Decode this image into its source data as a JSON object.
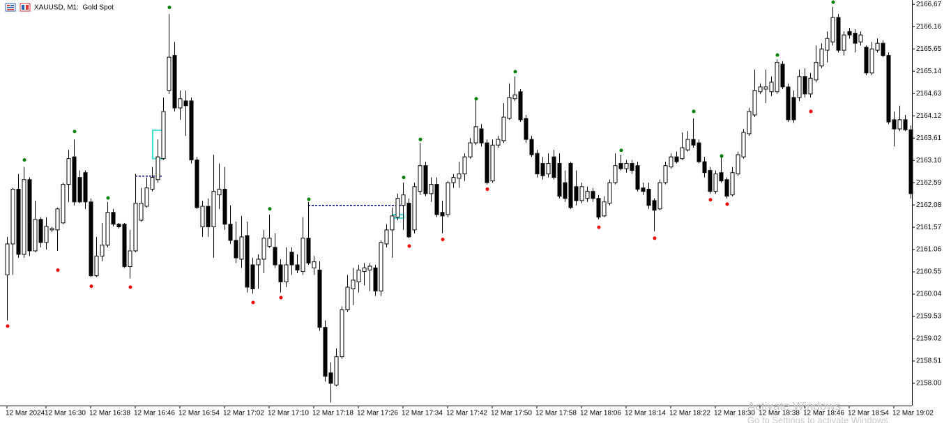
{
  "chart_data": {
    "type": "candlestick",
    "title": "XAUUSD, M1:  Gold Spot",
    "categories": [
      "12 Mar 2024",
      null,
      null,
      null,
      null,
      null,
      null,
      "12 Mar 16:30",
      null,
      null,
      null,
      null,
      null,
      null,
      null,
      "12 Mar 16:38",
      null,
      null,
      null,
      null,
      null,
      null,
      null,
      "12 Mar 16:46",
      null,
      null,
      null,
      null,
      null,
      null,
      null,
      "12 Mar 16:54",
      null,
      null,
      null,
      null,
      null,
      null,
      null,
      "12 Mar 17:02",
      null,
      null,
      null,
      null,
      null,
      null,
      null,
      "12 Mar 17:10",
      null,
      null,
      null,
      null,
      null,
      null,
      null,
      "12 Mar 17:18",
      null,
      null,
      null,
      null,
      null,
      null,
      null,
      "12 Mar 17:26",
      null,
      null,
      null,
      null,
      null,
      null,
      null,
      "12 Mar 17:34",
      null,
      null,
      null,
      null,
      null,
      null,
      null,
      "12 Mar 17:42",
      null,
      null,
      null,
      null,
      null,
      null,
      null,
      "12 Mar 17:50",
      null,
      null,
      null,
      null,
      null,
      null,
      null,
      "12 Mar 17:58",
      null,
      null,
      null,
      null,
      null,
      null,
      null,
      "12 Mar 18:06",
      null,
      null,
      null,
      null,
      null,
      null,
      null,
      "12 Mar 18:14",
      null,
      null,
      null,
      null,
      null,
      null,
      null,
      "12 Mar 18:22",
      null,
      null,
      null,
      null,
      null,
      null,
      null,
      "12 Mar 18:30",
      null,
      null,
      null,
      null,
      null,
      null,
      null,
      "12 Mar 18:38",
      null,
      null,
      null,
      null,
      null,
      null,
      null,
      "12 Mar 18:46",
      null,
      null,
      null,
      null,
      null,
      null,
      null,
      "12 Mar 18:54",
      null,
      null,
      null,
      null,
      null,
      null,
      null,
      "12 Mar 19:02",
      null,
      null,
      null
    ],
    "open": [
      2160.48,
      2161.19,
      2162.44,
      2160.95,
      2162.66,
      2161.03,
      2161.75,
      2161.22,
      2161.51,
      2161.51,
      2161.67,
      2162.55,
      2163.18,
      2162.71,
      2162.82,
      2162.15,
      2160.46,
      2160.91,
      2161.16,
      2161.91,
      2161.64,
      2161.64,
      2160.67,
      2161.03,
      2161.73,
      2162.05,
      2162.44,
      2162.66,
      2163.14,
      2164.7,
      2165.5,
      2164.3,
      2164.46,
      2164.46,
      2163.11,
      2161.58,
      2162.05,
      2161.58,
      2162.31,
      2162.44,
      2161.64,
      2161.27,
      2160.84,
      2161.38,
      2160.71,
      2160.71,
      2160.84,
      2161.13,
      2161.11,
      2160.71,
      2160.32,
      2161.0,
      2160.71,
      2160.56,
      2161.32,
      2160.64,
      2160.59,
      2159.28,
      2158.24,
      2157.96,
      2158.61,
      2159.68,
      2160.16,
      2160.32,
      2160.56,
      2160.59,
      2160.64,
      2160.11,
      2161.19,
      2161.51,
      2161.8,
      2162.07,
      2162.12,
      2161.51,
      2162.39,
      2162.98,
      2162.34,
      2162.55,
      2161.91,
      2161.86,
      2162.59,
      2162.69,
      2162.79,
      2163.18,
      2163.5,
      2163.82,
      2163.5,
      2162.63,
      2163.45,
      2163.55,
      2164.06,
      2164.51,
      2164.67,
      2164.06,
      2163.58,
      2163.26,
      2163.03,
      2162.79,
      2163.18,
      2163.03,
      2162.59,
      2163.03,
      2162.5,
      2162.18,
      2162.23,
      2162.39,
      2162.23,
      2161.83,
      2162.12,
      2162.59,
      2163.03,
      2162.91,
      2163.03,
      2162.98,
      2162.47,
      2162.44,
      2162.18,
      2161.99,
      2162.59,
      2162.95,
      2163.18,
      2163.14,
      2163.34,
      2163.58,
      2163.5,
      2163.07,
      2162.87,
      2162.39,
      2162.82,
      2162.66,
      2162.31,
      2162.79,
      2163.18,
      2163.71,
      2164.14,
      2164.67,
      2164.73,
      2164.67,
      2164.67,
      2165.3,
      2164.78,
      2164.54,
      2164.54,
      2165.02,
      2164.62,
      2164.94,
      2165.26,
      2165.62,
      2165.81,
      2166.37,
      2165.62,
      2166.05,
      2166.01,
      2165.81,
      2165.69,
      2165.1,
      2165.62,
      2165.78,
      2165.5,
      2164.03,
      2163.82,
      2164.03,
      2163.8
    ],
    "high": [
      2161.35,
      2162.47,
      2162.79,
      2162.95,
      2162.71,
      2162.18,
      2161.8,
      2161.8,
      2161.58,
      2162.02,
      2162.59,
      2163.34,
      2163.58,
      2162.87,
      2162.87,
      2162.23,
      2161.35,
      2161.67,
      2162.15,
      2161.99,
      2161.67,
      2161.67,
      2161.51,
      2162.79,
      2162.47,
      2162.71,
      2162.95,
      2163.58,
      2164.54,
      2166.45,
      2165.81,
      2164.7,
      2164.7,
      2164.54,
      2163.18,
      2162.18,
      2162.23,
      2163.23,
      2163.03,
      2162.95,
      2162.07,
      2161.7,
      2161.83,
      2161.7,
      2160.87,
      2160.95,
      2161.51,
      2161.86,
      2161.43,
      2160.84,
      2161.11,
      2161.11,
      2160.95,
      2161.8,
      2162.15,
      2160.91,
      2160.79,
      2159.44,
      2158.48,
      2158.8,
      2159.76,
      2160.48,
      2160.64,
      2160.71,
      2160.75,
      2160.75,
      2160.71,
      2161.27,
      2161.64,
      2162.02,
      2162.34,
      2162.59,
      2162.23,
      2162.59,
      2163.5,
      2163.07,
      2162.71,
      2162.71,
      2162.18,
      2162.63,
      2162.79,
      2163.07,
      2163.26,
      2163.61,
      2164.51,
      2163.93,
      2163.58,
      2163.58,
      2163.66,
      2164.41,
      2164.86,
      2165.02,
      2164.73,
      2164.14,
      2163.66,
      2163.34,
      2163.18,
      2163.26,
      2163.34,
      2163.26,
      2162.87,
      2163.07,
      2162.87,
      2162.59,
      2162.5,
      2162.47,
      2162.31,
      2162.28,
      2162.66,
      2163.26,
      2163.23,
      2163.11,
      2163.11,
      2163.07,
      2162.59,
      2162.59,
      2162.23,
      2162.66,
      2163.07,
      2163.26,
      2163.3,
      2163.74,
      2163.77,
      2164.06,
      2163.58,
      2163.18,
      2162.95,
      2162.87,
      2163.18,
      2162.71,
      2162.95,
      2163.3,
      2163.82,
      2164.3,
      2165.18,
      2164.86,
      2165.18,
      2165.02,
      2165.41,
      2165.37,
      2164.86,
      2164.7,
      2165.18,
      2165.21,
      2165.1,
      2165.73,
      2165.78,
      2166.05,
      2166.61,
      2166.45,
      2166.05,
      2166.13,
      2166.1,
      2166.05,
      2165.73,
      2165.81,
      2165.89,
      2165.85,
      2165.57,
      2164.22,
      2164.35,
      2164.14,
      2163.9
    ],
    "low": [
      2159.44,
      2160.48,
      2160.87,
      2160.87,
      2160.91,
      2161.0,
      2161.11,
      2161.06,
      2161.46,
      2161.03,
      2161.64,
      2162.15,
      2162.07,
      2162.12,
      2161.99,
      2160.43,
      2160.43,
      2160.79,
      2161.11,
      2161.59,
      2161.54,
      2160.64,
      2160.4,
      2161.0,
      2161.7,
      2162.02,
      2162.39,
      2162.59,
      2163.11,
      2164.62,
      2164.22,
      2164.03,
      2163.66,
      2163.03,
      2161.99,
      2161.35,
      2161.35,
      2160.87,
      2161.99,
      2161.51,
      2161.19,
      2160.75,
      2160.64,
      2160.08,
      2160.05,
      2160.16,
      2160.52,
      2161.1,
      2160.64,
      2160.08,
      2160.2,
      2160.48,
      2160.52,
      2160.48,
      2160.71,
      2160.48,
      2159.2,
      2158.04,
      2157.56,
      2157.93,
      2158.56,
      2159.63,
      2159.79,
      2160.08,
      2160.24,
      2160.11,
      2160.0,
      2160.0,
      2161.11,
      2160.87,
      2161.73,
      2161.51,
      2161.32,
      2161.43,
      2162.31,
      2162.28,
      2162.15,
      2161.8,
      2161.43,
      2161.8,
      2162.47,
      2162.47,
      2162.63,
      2163.14,
      2163.45,
      2163.42,
      2162.55,
      2162.59,
      2163.39,
      2163.5,
      2164.03,
      2164.46,
      2163.98,
      2163.5,
      2163.18,
      2162.71,
      2162.66,
      2162.71,
      2162.66,
      2162.23,
      2162.15,
      2161.99,
      2162.07,
      2162.12,
      2162.15,
      2162.15,
      2161.75,
      2161.8,
      2162.07,
      2162.55,
      2162.87,
      2162.82,
      2162.79,
      2162.39,
      2162.31,
      2161.99,
      2161.48,
      2161.96,
      2162.55,
      2162.91,
      2163.03,
      2163.11,
      2163.3,
      2163.39,
      2163.03,
      2162.71,
      2162.34,
      2162.34,
      2162.59,
      2162.23,
      2162.28,
      2162.75,
      2163.14,
      2163.66,
      2164.09,
      2164.62,
      2164.41,
      2164.57,
      2164.62,
      2164.73,
      2163.98,
      2163.96,
      2164.46,
      2164.54,
      2164.54,
      2164.89,
      2165.21,
      2165.34,
      2165.73,
      2165.57,
      2165.5,
      2165.89,
      2165.57,
      2165.73,
      2165.05,
      2165.05,
      2165.57,
      2165.46,
      2163.93,
      2163.42,
      2163.77,
      2163.77,
      2162.23
    ],
    "close": [
      2161.19,
      2162.44,
      2160.95,
      2162.66,
      2161.03,
      2161.75,
      2161.22,
      2161.59,
      2161.54,
      2161.99,
      2162.55,
      2163.14,
      2162.15,
      2162.15,
      2162.15,
      2160.46,
      2160.91,
      2161.16,
      2161.91,
      2161.64,
      2161.58,
      2160.67,
      2161.03,
      2162.12,
      2162.12,
      2162.47,
      2162.71,
      2163.18,
      2164.22,
      2165.46,
      2164.3,
      2164.51,
      2164.35,
      2163.11,
      2162.02,
      2162.05,
      2161.58,
      2162.39,
      2162.44,
      2161.64,
      2161.27,
      2160.87,
      2161.35,
      2160.2,
      2160.16,
      2160.84,
      2161.32,
      2161.32,
      2160.71,
      2160.32,
      2160.71,
      2160.71,
      2160.59,
      2161.32,
      2160.75,
      2160.78,
      2159.28,
      2158.16,
      2158.0,
      2158.61,
      2159.68,
      2160.2,
      2160.36,
      2160.59,
      2160.64,
      2160.68,
      2160.11,
      2161.22,
      2161.51,
      2161.83,
      2162.23,
      2162.31,
      2161.35,
      2162.5,
      2162.98,
      2162.34,
      2162.55,
      2161.86,
      2161.83,
      2162.59,
      2162.71,
      2162.79,
      2163.18,
      2163.5,
      2163.87,
      2163.5,
      2162.59,
      2163.45,
      2163.58,
      2164.09,
      2164.54,
      2164.6,
      2164.03,
      2163.58,
      2163.23,
      2162.79,
      2162.75,
      2163.03,
      2162.71,
      2162.28,
      2162.23,
      2162.02,
      2162.18,
      2162.5,
      2162.39,
      2162.23,
      2161.8,
      2162.15,
      2162.59,
      2162.98,
      2162.91,
      2163.03,
      2162.87,
      2162.44,
      2162.39,
      2162.07,
      2161.96,
      2162.59,
      2162.98,
      2163.18,
      2163.07,
      2163.39,
      2163.58,
      2163.45,
      2163.07,
      2162.82,
      2162.39,
      2162.79,
      2162.63,
      2162.28,
      2162.82,
      2163.23,
      2163.74,
      2164.22,
      2164.7,
      2164.78,
      2164.78,
      2164.89,
      2165.34,
      2164.78,
      2164.03,
      2164.03,
      2165.02,
      2164.62,
      2164.98,
      2165.34,
      2165.65,
      2165.89,
      2166.37,
      2165.62,
      2165.97,
      2165.97,
      2165.78,
      2165.97,
      2165.1,
      2165.65,
      2165.78,
      2165.5,
      2163.98,
      2163.82,
      2164.03,
      2163.8,
      2162.34
    ],
    "up_color": "#ffffff",
    "down_color": "#000000",
    "up_fractals": {
      "color": "#008000",
      "x": [
        3,
        12,
        18,
        29,
        47,
        54,
        71,
        74,
        84,
        91,
        110,
        123,
        128,
        138,
        148
      ],
      "values": [
        2163.11,
        2163.76,
        2162.24,
        2166.6,
        2161.99,
        2162.21,
        2162.71,
        2163.58,
        2164.51,
        2165.13,
        2163.33,
        2164.22,
        2163.2,
        2165.51,
        2166.72
      ]
    },
    "down_fractals": {
      "color": "#ff0000",
      "x": [
        0,
        9,
        15,
        22,
        44,
        49,
        72,
        78,
        86,
        106,
        116,
        126,
        129,
        144
      ],
      "values": [
        2159.31,
        2160.59,
        2160.22,
        2160.2,
        2159.85,
        2159.96,
        2161.14,
        2161.29,
        2162.44,
        2161.57,
        2161.32,
        2162.2,
        2162.1,
        2164.22
      ]
    },
    "rectangles": [
      {
        "x": [
          26,
          28
        ],
        "y": [
          2163.79,
          2163.14
        ]
      },
      {
        "x": [
          69,
          71
        ],
        "y": [
          2161.86,
          2161.78
        ]
      }
    ],
    "rect_color": "#40e0d0",
    "trend_lines": [
      {
        "x": [
          23,
          28
        ],
        "y": 2162.74
      },
      {
        "x": [
          54,
          71
        ],
        "y": 2162.07
      }
    ],
    "line_color": "#00008b",
    "ylim": [
      2157.49,
      2166.77
    ],
    "yticks": [
      2166.67,
      2166.16,
      2165.65,
      2165.14,
      2164.63,
      2164.12,
      2163.61,
      {
        "value": 2163.1,
        "label": "2163.10"
      },
      2162.59,
      2162.08,
      2161.57,
      2161.06,
      2160.55,
      2160.04,
      2159.53,
      2159.02,
      2158.51,
      {
        "value": 2158,
        "label": "2158.00"
      }
    ],
    "grid": false
  },
  "watermark": {
    "title": "Activate Windows",
    "subtitle": "Go to Settings to activate Windows."
  }
}
